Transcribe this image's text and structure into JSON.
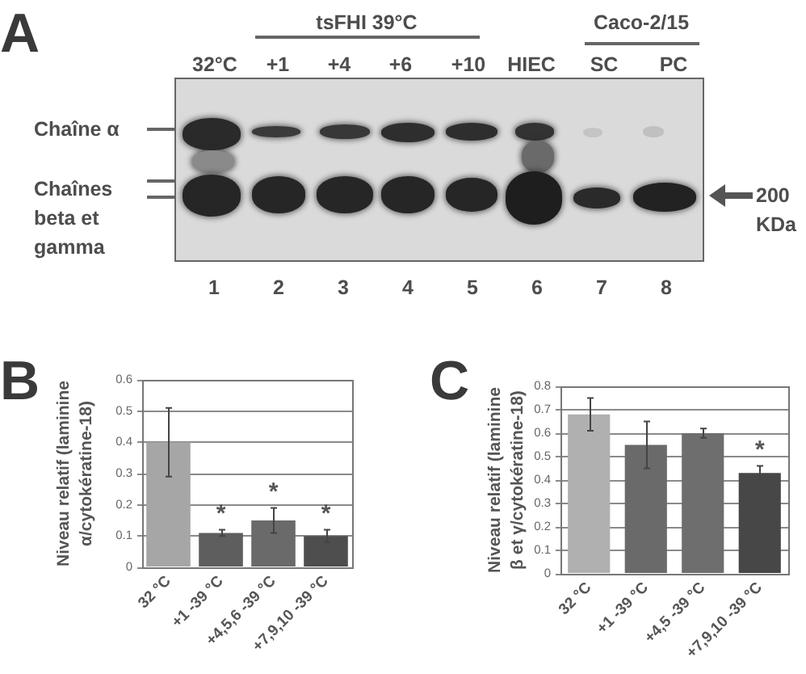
{
  "chart_data": [
    {
      "type": "other",
      "title": "A",
      "annotations": [
        "tsFHI 39°C",
        "Caco-2/15",
        "32°C",
        "+1",
        "+4",
        "+6",
        "+10",
        "HIEC",
        "SC",
        "PC",
        "Chaîne α",
        "Chaînes beta et gamma",
        "200 KDa",
        "1 2 3 4 5 6 7 8"
      ]
    },
    {
      "type": "bar",
      "title": "B",
      "ylabel": "Niveau relatif (laminine α/cytokératine-18)",
      "categories": [
        "32 °C",
        "+1 -39 °C",
        "+4,5,6 -39 °C",
        "+7,9,10 -39 °C"
      ],
      "values": [
        0.4,
        0.11,
        0.15,
        0.1
      ],
      "errors": [
        0.11,
        0.01,
        0.04,
        0.02
      ],
      "colors": [
        "#a6a6a6",
        "#5e5e5e",
        "#6a6a6a",
        "#4e4e4e"
      ],
      "ylim": [
        0,
        0.6
      ],
      "yticks": [
        0,
        0.1,
        0.2,
        0.3,
        0.4,
        0.5,
        0.6
      ],
      "grid": "y",
      "annotations": [
        "*",
        "*",
        "*"
      ]
    },
    {
      "type": "bar",
      "title": "C",
      "ylabel": "Niveau relatif (laminine β et γ/cytokératine-18)",
      "categories": [
        "32 °C",
        "+1 -39 °C",
        "+4,5 -39 °C",
        "+7,9,10 -39 °C"
      ],
      "values": [
        0.68,
        0.55,
        0.6,
        0.43
      ],
      "errors": [
        0.07,
        0.1,
        0.02,
        0.03
      ],
      "colors": [
        "#b0b0b0",
        "#6a6a6a",
        "#6e6e6e",
        "#474747"
      ],
      "ylim": [
        0,
        0.8
      ],
      "yticks": [
        0,
        0.1,
        0.2,
        0.3,
        0.4,
        0.5,
        0.6,
        0.7,
        0.8
      ],
      "grid": "y",
      "annotations": [
        "*"
      ]
    }
  ]
}
